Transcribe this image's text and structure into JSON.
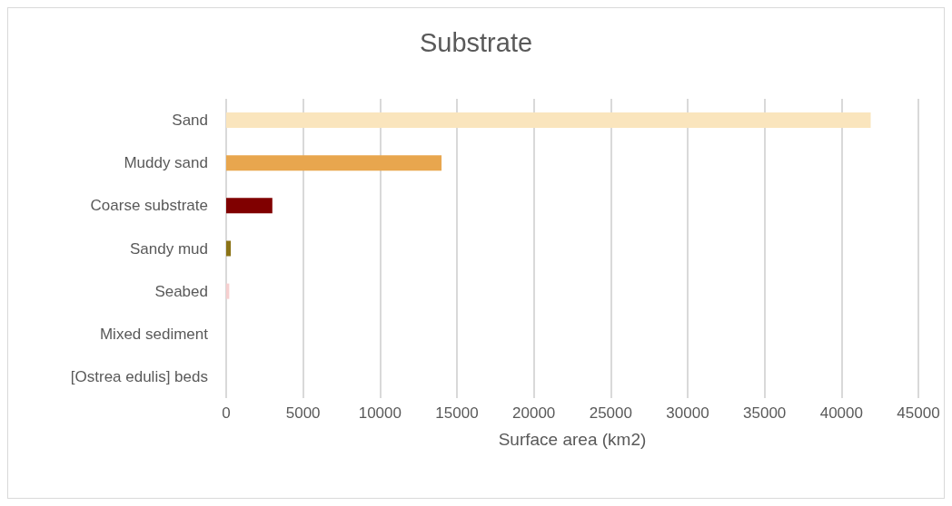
{
  "chart_data": {
    "type": "bar",
    "orientation": "horizontal",
    "title": "Substrate",
    "xlabel": "Surface area (km2)",
    "categories": [
      "Sand",
      "Muddy sand",
      "Coarse substrate",
      "Sandy mud",
      "Seabed",
      "Mixed sediment",
      "[Ostrea edulis] beds"
    ],
    "values": [
      41900,
      14000,
      3000,
      300,
      200,
      0,
      0
    ],
    "colors": [
      "#fae5bd",
      "#e8a64e",
      "#800000",
      "#8b7317",
      "#f6cfcf",
      "#a9a9a9",
      "#c0c0c0"
    ],
    "xlim": [
      0,
      45000
    ],
    "xticks": [
      0,
      5000,
      10000,
      15000,
      20000,
      25000,
      30000,
      35000,
      40000,
      45000
    ],
    "grid": "x"
  }
}
